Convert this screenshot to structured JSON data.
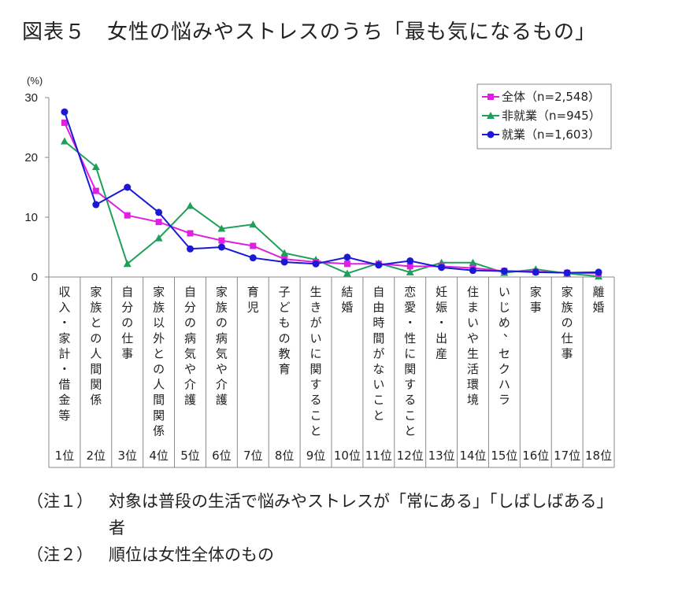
{
  "title": "図表５　女性の悩みやストレスのうち「最も気になるもの」",
  "chart_data": {
    "type": "line",
    "unit_label": "(%)",
    "ylim": [
      0,
      30
    ],
    "yticks": [
      "0",
      "10",
      "20",
      "30"
    ],
    "categories": [
      "収入・家計・借金等",
      "家族との人間関係",
      "自分の仕事",
      "家族以外との人間関係",
      "自分の病気や介護",
      "家族の病気や介護",
      "育児",
      "子どもの教育",
      "生きがいに関すること",
      "結婚",
      "自由時間がないこと",
      "恋愛・性に関すること",
      "妊娠・出産",
      "住まいや生活環境",
      "いじめ、セクハラ",
      "家事",
      "家族の仕事",
      "離婚"
    ],
    "ranks": [
      "1位",
      "2位",
      "3位",
      "4位",
      "5位",
      "6位",
      "7位",
      "8位",
      "9位",
      "10位",
      "11位",
      "12位",
      "13位",
      "14位",
      "15位",
      "16位",
      "17位",
      "18位"
    ],
    "series": [
      {
        "name": "全体（n=2,548）",
        "color": "#e020e0",
        "marker": "square",
        "values": [
          25.8,
          14.4,
          10.3,
          9.2,
          7.3,
          6.1,
          5.2,
          3.0,
          2.5,
          2.2,
          2.2,
          1.8,
          1.8,
          1.5,
          1.0,
          0.9,
          0.7,
          0.6
        ]
      },
      {
        "name": "非就業（n=945）",
        "color": "#1fa05a",
        "marker": "triangle",
        "values": [
          22.7,
          18.4,
          2.2,
          6.5,
          11.9,
          8.1,
          8.8,
          4.0,
          2.9,
          0.6,
          2.3,
          0.8,
          2.4,
          2.4,
          0.7,
          1.3,
          0.6,
          0.1
        ]
      },
      {
        "name": "就業（n=1,603）",
        "color": "#1a1ad6",
        "marker": "circle",
        "values": [
          27.6,
          12.1,
          15.0,
          10.8,
          4.7,
          5.0,
          3.2,
          2.5,
          2.2,
          3.3,
          2.0,
          2.7,
          1.6,
          1.1,
          1.0,
          0.8,
          0.7,
          0.8
        ]
      }
    ],
    "legend_position": "top-right",
    "grid": false
  },
  "notes": [
    {
      "label": "（注１）",
      "text": "対象は普段の生活で悩みやストレスが「常にある」「しばしばある」 者"
    },
    {
      "label": "（注２）",
      "text": "順位は女性全体のもの"
    }
  ]
}
